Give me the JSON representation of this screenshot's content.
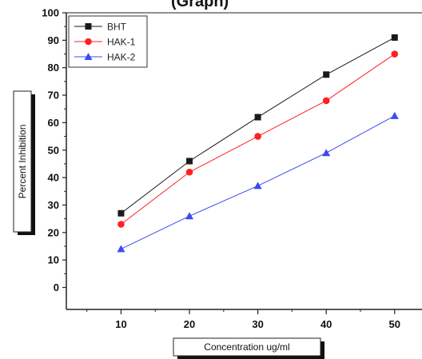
{
  "chart_data": {
    "type": "line",
    "title": "",
    "partial_title": "(Graph)",
    "xlabel": "Concentration ug/ml",
    "ylabel": "Percent Inhibition",
    "x": [
      10,
      20,
      30,
      40,
      50
    ],
    "x_ticks": [
      "10",
      "20",
      "30",
      "40",
      "50"
    ],
    "y_ticks": [
      "0",
      "10",
      "20",
      "30",
      "40",
      "50",
      "60",
      "70",
      "80",
      "90",
      "100"
    ],
    "xlim": [
      2,
      54
    ],
    "ylim": [
      -8,
      100
    ],
    "grid": false,
    "legend_position": "top-left",
    "series": [
      {
        "name": "BHT",
        "values": [
          27,
          46,
          62,
          77.5,
          91
        ],
        "color": "#1a1a1a",
        "marker": "square"
      },
      {
        "name": "HAK-1",
        "values": [
          23,
          42,
          55,
          68,
          85
        ],
        "color": "#ff2020",
        "marker": "circle"
      },
      {
        "name": "HAK-2",
        "values": [
          14,
          26,
          37,
          49,
          62.5
        ],
        "color": "#3a4cf0",
        "marker": "triangle"
      }
    ]
  }
}
